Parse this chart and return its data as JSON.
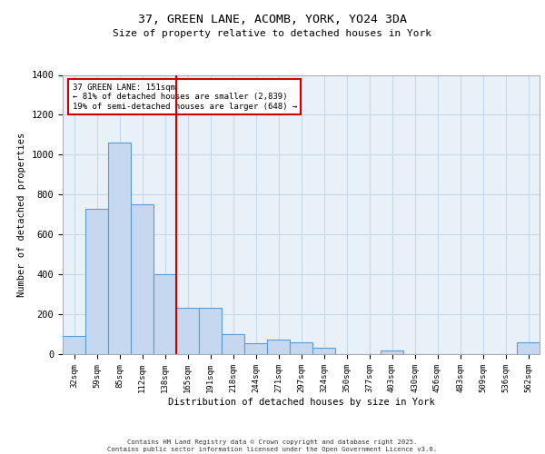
{
  "title_line1": "37, GREEN LANE, ACOMB, YORK, YO24 3DA",
  "title_line2": "Size of property relative to detached houses in York",
  "xlabel": "Distribution of detached houses by size in York",
  "ylabel": "Number of detached properties",
  "categories": [
    "32sqm",
    "59sqm",
    "85sqm",
    "112sqm",
    "138sqm",
    "165sqm",
    "191sqm",
    "218sqm",
    "244sqm",
    "271sqm",
    "297sqm",
    "324sqm",
    "350sqm",
    "377sqm",
    "403sqm",
    "430sqm",
    "456sqm",
    "483sqm",
    "509sqm",
    "536sqm",
    "562sqm"
  ],
  "values": [
    90,
    730,
    1060,
    750,
    400,
    230,
    230,
    100,
    55,
    75,
    60,
    30,
    0,
    0,
    20,
    0,
    0,
    0,
    0,
    0,
    60
  ],
  "bar_color": "#c5d8ef",
  "bar_edge_color": "#5b9bd5",
  "marker_label": "37 GREEN LANE: 151sqm",
  "marker_pct_left": "81% of detached houses are smaller (2,839)",
  "marker_pct_right": "19% of semi-detached houses are larger (648)",
  "marker_color": "#cc0000",
  "annotation_box_color": "#cc0000",
  "grid_color": "#c8d8e8",
  "background_color": "#e8f0f8",
  "ylim": [
    0,
    1400
  ],
  "yticks": [
    0,
    200,
    400,
    600,
    800,
    1000,
    1200,
    1400
  ],
  "footer_line1": "Contains HM Land Registry data © Crown copyright and database right 2025.",
  "footer_line2": "Contains public sector information licensed under the Open Government Licence v3.0."
}
